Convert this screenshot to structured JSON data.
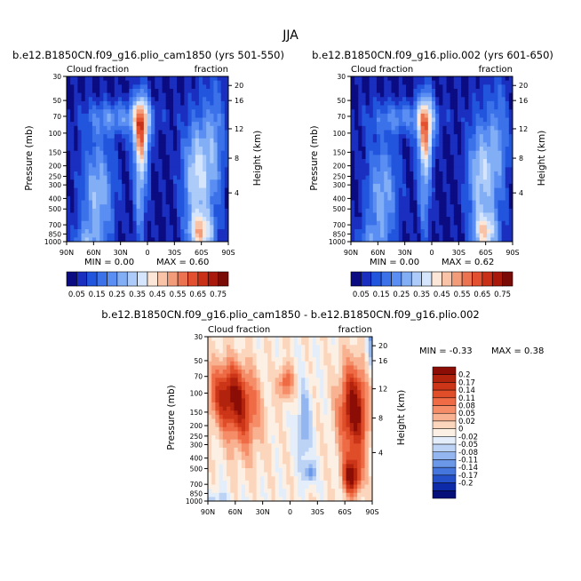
{
  "figure_title": "JJA",
  "chart_data": [
    {
      "type": "heatmap",
      "title": "b.e12.B1850CN.f09_g16.plio_cam1850 (yrs 501-550)",
      "left_label": "Cloud fraction",
      "right_label": "fraction",
      "ylabel": "Pressure (mb)",
      "ylabel_right": "Height (km)",
      "x_ticks": [
        "90N",
        "60N",
        "30N",
        "0",
        "30S",
        "60S",
        "90S"
      ],
      "x_values": [
        90,
        60,
        30,
        0,
        -30,
        -60,
        -90
      ],
      "xlim": [
        90,
        -90
      ],
      "y_ticks": [
        "1000",
        "850",
        "700",
        "500",
        "400",
        "300",
        "250",
        "200",
        "150",
        "100",
        "70",
        "50",
        "30"
      ],
      "y_values": [
        1000,
        850,
        700,
        500,
        400,
        300,
        250,
        200,
        150,
        100,
        70,
        50,
        30
      ],
      "ylim": [
        1000,
        30
      ],
      "height_ticks": [
        "4",
        "8",
        "12",
        "16",
        "20"
      ],
      "height_values": [
        4,
        8,
        12,
        16,
        20
      ],
      "min_text": "MIN =    0.00",
      "max_text": "MAX =    0.60",
      "min": 0.0,
      "max": 0.6
    },
    {
      "type": "heatmap",
      "title": "b.e12.B1850CN.f09_g16.plio.002 (yrs 601-650)",
      "left_label": "Cloud fraction",
      "right_label": "fraction",
      "ylabel": "Pressure (mb)",
      "ylabel_right": "Height (km)",
      "x_ticks": [
        "90N",
        "60N",
        "30N",
        "0",
        "30S",
        "60S",
        "90S"
      ],
      "x_values": [
        90,
        60,
        30,
        0,
        -30,
        -60,
        -90
      ],
      "xlim": [
        90,
        -90
      ],
      "y_ticks": [
        "1000",
        "850",
        "700",
        "500",
        "400",
        "300",
        "250",
        "200",
        "150",
        "100",
        "70",
        "50",
        "30"
      ],
      "y_values": [
        1000,
        850,
        700,
        500,
        400,
        300,
        250,
        200,
        150,
        100,
        70,
        50,
        30
      ],
      "ylim": [
        1000,
        30
      ],
      "height_ticks": [
        "4",
        "8",
        "12",
        "16",
        "20"
      ],
      "height_values": [
        4,
        8,
        12,
        16,
        20
      ],
      "min_text": "MIN =    0.00",
      "max_text": "MAX =    0.62",
      "min": 0.0,
      "max": 0.62
    },
    {
      "type": "heatmap",
      "title": "b.e12.B1850CN.f09_g16.plio_cam1850 - b.e12.B1850CN.f09_g16.plio.002",
      "left_label": "Cloud fraction",
      "right_label": "fraction",
      "ylabel": "Pressure (mb)",
      "ylabel_right": "Height (km)",
      "x_ticks": [
        "90N",
        "60N",
        "30N",
        "0",
        "30S",
        "60S",
        "90S"
      ],
      "x_values": [
        90,
        60,
        30,
        0,
        -30,
        -60,
        -90
      ],
      "xlim": [
        90,
        -90
      ],
      "y_ticks": [
        "1000",
        "850",
        "700",
        "500",
        "400",
        "300",
        "250",
        "200",
        "150",
        "100",
        "70",
        "50",
        "30"
      ],
      "y_values": [
        1000,
        850,
        700,
        500,
        400,
        300,
        250,
        200,
        150,
        100,
        70,
        50,
        30
      ],
      "ylim": [
        1000,
        30
      ],
      "height_ticks": [
        "4",
        "8",
        "12",
        "16",
        "20"
      ],
      "height_values": [
        4,
        8,
        12,
        16,
        20
      ],
      "min_text": "MIN =   -0.33",
      "max_text": "MAX =    0.38",
      "min": -0.33,
      "max": 0.38
    }
  ],
  "colorbar_abs": {
    "labels": [
      "0.05",
      "0.15",
      "0.25",
      "0.35",
      "0.45",
      "0.55",
      "0.65",
      "0.75"
    ],
    "colors": [
      "#0b0b82",
      "#1a2fbf",
      "#2255dd",
      "#3b72ea",
      "#5a8ef2",
      "#82aef6",
      "#adcbf9",
      "#d5e5fb",
      "#fbe6d8",
      "#f8c3a6",
      "#f39c7a",
      "#ec7350",
      "#e2502f",
      "#c93018",
      "#a8190c",
      "#7a0a05"
    ]
  },
  "colorbar_diff": {
    "labels": [
      "0.2",
      "0.17",
      "0.14",
      "0.11",
      "0.08",
      "0.05",
      "0.02",
      "0",
      "-0.02",
      "-0.05",
      "-0.08",
      "-0.11",
      "-0.14",
      "-0.17",
      "-0.2"
    ],
    "colors": [
      "#8c0c06",
      "#b2230d",
      "#cc3518",
      "#df4d29",
      "#ee6b45",
      "#f58d68",
      "#f9b291",
      "#fbd6bd",
      "#fcf0e4",
      "#e4eefb",
      "#bcd3f6",
      "#93b6f0",
      "#6b97e8",
      "#4576de",
      "#2450c9",
      "#0d2aa8",
      "#05107a"
    ]
  }
}
